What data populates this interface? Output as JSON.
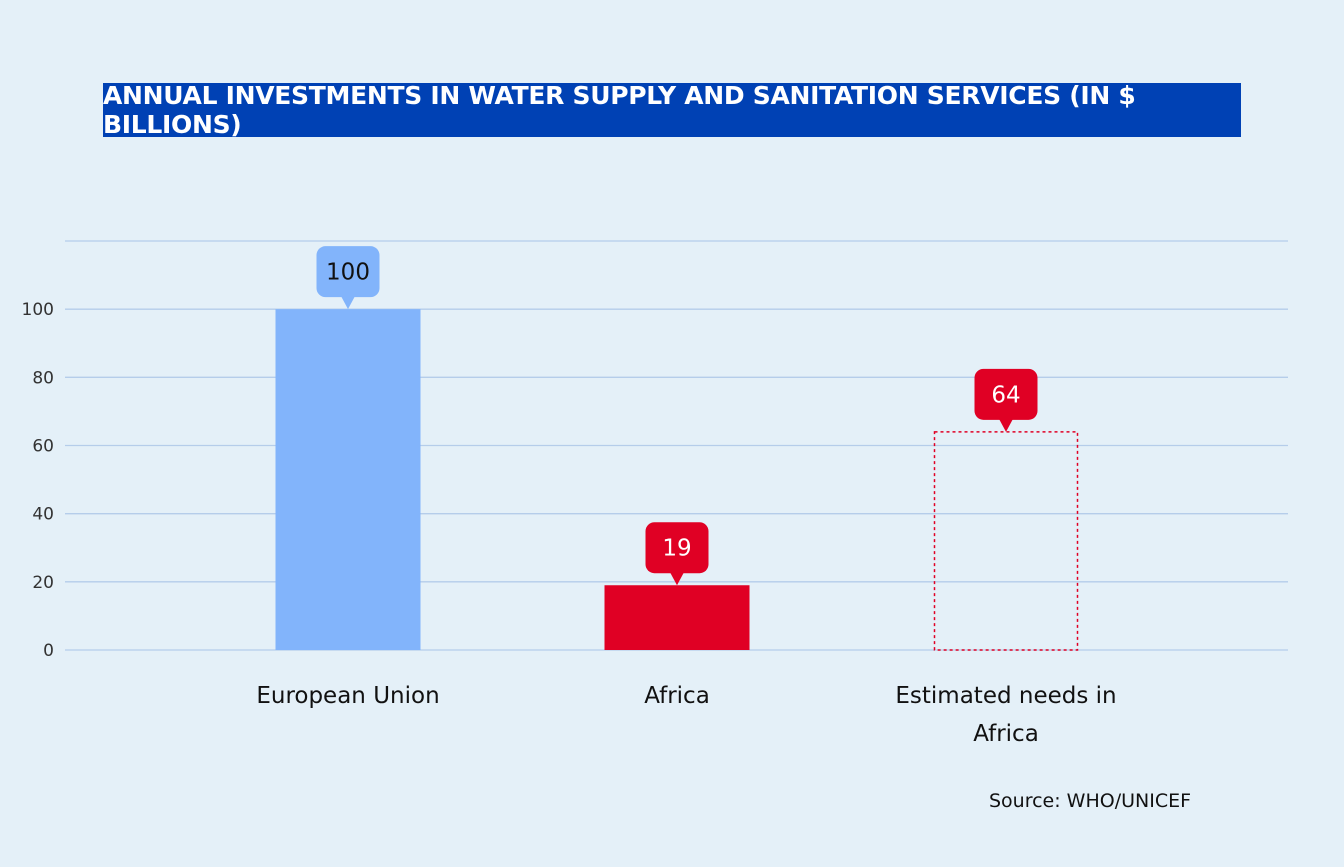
{
  "chart_data": {
    "type": "bar",
    "title": "ANNUAL INVESTMENTS IN WATER SUPPLY AND SANITATION SERVICES (IN $ BILLIONS)",
    "categories": [
      "European Union",
      "Africa",
      "Estimated needs in Africa"
    ],
    "category_lines": [
      [
        "European Union"
      ],
      [
        "Africa"
      ],
      [
        "Estimated needs in",
        "Africa"
      ]
    ],
    "values": [
      100,
      19,
      64
    ],
    "data_labels": [
      "100",
      "19",
      "64"
    ],
    "bar_styles": [
      "solid",
      "solid",
      "dashed-outline"
    ],
    "colors": [
      "#82b4fb",
      "#e00024",
      "#e00024"
    ],
    "label_text_colors": [
      "#111111",
      "#ffffff",
      "#ffffff"
    ],
    "yticks": [
      0,
      20,
      40,
      60,
      80,
      100
    ],
    "ylim": [
      0,
      120
    ],
    "grid": true,
    "xlabel": "",
    "ylabel": "",
    "source": "Source: WHO/UNICEF"
  },
  "colors": {
    "background": "#e4f0f8",
    "title_bg": "#0041b4",
    "grid": "#b5cdea"
  }
}
